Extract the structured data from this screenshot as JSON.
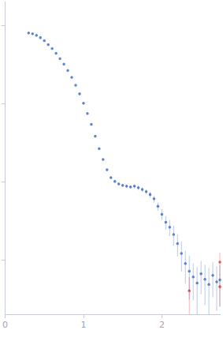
{
  "chart_data": {
    "type": "scatter",
    "log": "y",
    "grid": false,
    "tick_labels": "x",
    "xlim": [
      0,
      2.75
    ],
    "xticks": [
      0,
      1,
      2
    ],
    "ylim": [
      0.0002,
      2
    ],
    "yticks": [
      0.001,
      0.01,
      0.1,
      1
    ],
    "series": [
      {
        "color": "#3a68c4",
        "x": [
          0.3,
          0.35,
          0.4,
          0.45,
          0.5,
          0.55,
          0.6,
          0.65,
          0.7,
          0.75,
          0.8,
          0.85,
          0.9,
          0.95,
          1.0,
          1.05,
          1.1,
          1.15,
          1.2,
          1.25,
          1.3,
          1.35,
          1.4,
          1.45,
          1.5,
          1.55,
          1.6,
          1.65,
          1.7,
          1.75,
          1.8,
          1.85,
          1.9,
          1.95,
          2.0,
          2.05,
          2.1,
          2.15,
          2.2,
          2.25,
          2.3,
          2.35,
          2.4,
          2.45,
          2.5,
          2.55,
          2.6,
          2.65,
          2.7,
          2.74
        ],
        "values": [
          0.794,
          0.776,
          0.741,
          0.692,
          0.631,
          0.562,
          0.501,
          0.437,
          0.372,
          0.316,
          0.263,
          0.214,
          0.17,
          0.132,
          0.1,
          0.0741,
          0.0537,
          0.038,
          0.0263,
          0.0191,
          0.0141,
          0.0112,
          0.01,
          0.0093,
          0.0089,
          0.0087,
          0.0085,
          0.0087,
          0.0083,
          0.0079,
          0.0074,
          0.0068,
          0.006,
          0.0048,
          0.0038,
          0.003,
          0.0026,
          0.0021,
          0.0016,
          0.0012,
          0.00089,
          0.00071,
          0.0006,
          0.0005,
          0.00066,
          0.00056,
          0.00048,
          0.00063,
          0.00052,
          0.00055
        ],
        "errors": [
          0.004,
          0.004,
          0.004,
          0.003,
          0.003,
          0.003,
          0.002,
          0.002,
          0.002,
          0.002,
          0.001,
          0.001,
          0.001,
          0.001,
          0.001,
          0.0007,
          0.0005,
          0.0004,
          0.0003,
          0.0003,
          0.0003,
          0.0003,
          0.0004,
          0.0004,
          0.0004,
          0.0004,
          0.0004,
          0.0005,
          0.0005,
          0.0005,
          0.0005,
          0.0006,
          0.0006,
          0.0006,
          0.0006,
          0.0006,
          0.0006,
          0.0006,
          0.0005,
          0.0005,
          0.0004,
          0.0004,
          0.0003,
          0.0003,
          0.0003,
          0.0003,
          0.0003,
          0.0003,
          0.0003,
          0.0003
        ]
      },
      {
        "color": "#d9342b",
        "x": [
          2.35,
          2.74,
          2.74
        ],
        "values": [
          0.0004,
          0.00093,
          0.00045
        ],
        "errors": [
          0.0002,
          0.0003,
          0.0002
        ]
      }
    ]
  }
}
